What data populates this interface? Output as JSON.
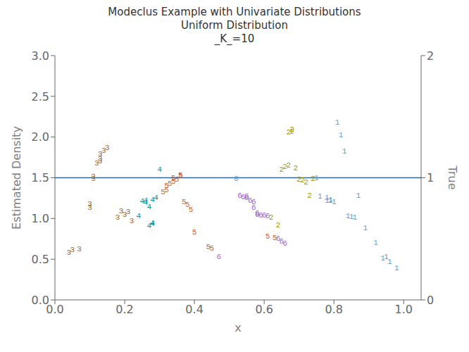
{
  "chart_data": {
    "type": "scatter",
    "title": "Modeclus Example with Univariate Distributions\nUniform Distribution\n_K_=10",
    "xlabel": "x",
    "ylabel": "Estimated Density",
    "y2label": "True",
    "xlim": [
      0.0,
      1.05
    ],
    "xticks": [
      {
        "value": 0,
        "label": "0.0"
      },
      0.2,
      0.4,
      0.6,
      0.8,
      {
        "value": 1,
        "label": "1.0"
      }
    ],
    "ylim": [
      0.0,
      3.0
    ],
    "yticks": [
      {
        "value": 0,
        "label": "0.0"
      },
      0.5,
      {
        "value": 1,
        "label": "1.0"
      },
      1.5,
      {
        "value": 2,
        "label": "2.0"
      },
      2.5,
      {
        "value": 3,
        "label": "3.0"
      }
    ],
    "y2lim": [
      0,
      2
    ],
    "y2ticks": [
      0,
      1,
      2
    ],
    "grid": false,
    "marker": "text",
    "hline": {
      "y": 1.5,
      "color": "#336699"
    },
    "x": [
      0.04,
      0.05,
      0.07,
      0.1,
      0.1,
      0.11,
      0.11,
      0.12,
      0.13,
      0.13,
      0.13,
      0.14,
      0.15,
      0.18,
      0.19,
      0.2,
      0.21,
      0.22,
      0.24,
      0.25,
      0.26,
      0.26,
      0.27,
      0.27,
      0.28,
      0.28,
      0.28,
      0.29,
      0.3,
      0.31,
      0.32,
      0.32,
      0.33,
      0.34,
      0.34,
      0.35,
      0.36,
      0.36,
      0.37,
      0.38,
      0.39,
      0.4,
      0.44,
      0.45,
      0.47,
      0.52,
      0.53,
      0.54,
      0.55,
      0.55,
      0.56,
      0.57,
      0.57,
      0.58,
      0.58,
      0.59,
      0.6,
      0.61,
      0.61,
      0.63,
      0.64,
      0.65,
      0.66,
      0.62,
      0.64,
      0.65,
      0.66,
      0.67,
      0.67,
      0.68,
      0.68,
      0.69,
      0.7,
      0.71,
      0.72,
      0.73,
      0.74,
      0.75,
      0.76,
      0.78,
      0.78,
      0.79,
      0.79,
      0.8,
      0.81,
      0.82,
      0.83,
      0.84,
      0.85,
      0.86,
      0.87,
      0.89,
      0.92,
      0.94,
      0.95,
      0.96,
      0.98
    ],
    "values": [
      0.58,
      0.61,
      0.62,
      1.13,
      1.18,
      1.49,
      1.51,
      1.68,
      1.7,
      1.73,
      1.79,
      1.83,
      1.87,
      1.01,
      1.09,
      1.05,
      1.08,
      0.97,
      1.03,
      1.21,
      1.19,
      1.22,
      1.14,
      0.91,
      0.93,
      0.94,
      1.23,
      1.25,
      1.6,
      1.32,
      1.35,
      1.4,
      1.43,
      1.45,
      1.5,
      1.48,
      1.52,
      1.53,
      1.2,
      1.17,
      1.11,
      0.83,
      0.65,
      0.63,
      0.53,
      1.49,
      1.28,
      1.26,
      1.25,
      1.27,
      1.22,
      1.2,
      1.13,
      1.05,
      1.06,
      1.04,
      1.04,
      1.03,
      0.78,
      0.76,
      0.75,
      0.72,
      0.69,
      1.01,
      0.92,
      1.6,
      1.63,
      1.65,
      2.06,
      2.07,
      2.09,
      1.62,
      1.48,
      1.47,
      1.44,
      1.28,
      1.49,
      1.5,
      1.27,
      1.22,
      1.25,
      1.22,
      1.23,
      1.2,
      2.18,
      2.02,
      1.82,
      1.03,
      1.02,
      1.01,
      1.28,
      0.88,
      0.7,
      0.51,
      0.53,
      0.47,
      0.39
    ],
    "labels": [
      "3",
      "3",
      "3",
      "3",
      "3",
      "3",
      "3",
      "3",
      "3",
      "3",
      "3",
      "3",
      "3",
      "3",
      "3",
      "3",
      "3",
      "3",
      "4",
      "4",
      "4",
      "4",
      "4",
      "4",
      "4",
      "4",
      "4",
      "4",
      "4",
      "5",
      "5",
      "5",
      "5",
      "5",
      "5",
      "5",
      "5",
      "5",
      "5",
      "5",
      "5",
      "5",
      "5",
      "5",
      "6",
      "8",
      "6",
      "6",
      "6",
      "6",
      "6",
      "6",
      "6",
      "6",
      "6",
      "6",
      "6",
      "6",
      "5",
      "5",
      "6",
      "6",
      "6",
      "2",
      "2",
      "2",
      "2",
      "2",
      "2",
      "2",
      "2",
      "2",
      "2",
      "2",
      "2",
      "2",
      "2",
      "1",
      "1",
      "1",
      "1",
      "1",
      "1",
      "1",
      "1",
      "1",
      "1",
      "1",
      "1",
      "1",
      "1",
      "1",
      "1",
      "1",
      "1",
      "1",
      "1"
    ],
    "colors": [
      "#996633",
      "#996633",
      "#996633",
      "#996633",
      "#996633",
      "#996633",
      "#996633",
      "#996633",
      "#996633",
      "#996633",
      "#996633",
      "#996633",
      "#996633",
      "#996633",
      "#996633",
      "#996633",
      "#996633",
      "#996633",
      "#009999",
      "#009999",
      "#009999",
      "#009999",
      "#009999",
      "#009999",
      "#009999",
      "#009999",
      "#009999",
      "#009999",
      "#009999",
      "#CC6633",
      "#CC6633",
      "#CC6633",
      "#CC6633",
      "#CC6633",
      "#CC6633",
      "#CC6633",
      "#CC6633",
      "#CC6633",
      "#CC6633",
      "#CC6633",
      "#CC6633",
      "#CC6633",
      "#CC6633",
      "#CC6633",
      "#9966CC",
      "#6699CC",
      "#9966CC",
      "#9966CC",
      "#9966CC",
      "#9966CC",
      "#9966CC",
      "#9966CC",
      "#9966CC",
      "#9966CC",
      "#9966CC",
      "#9966CC",
      "#9966CC",
      "#9966CC",
      "#CC6633",
      "#CC6633",
      "#9966CC",
      "#9966CC",
      "#9966CC",
      "#999900",
      "#999900",
      "#999900",
      "#999900",
      "#999900",
      "#999900",
      "#999900",
      "#999900",
      "#999900",
      "#999900",
      "#999900",
      "#999900",
      "#999900",
      "#999900",
      "#6699CC",
      "#6699CC",
      "#6699CC",
      "#6699CC",
      "#6699CC",
      "#6699CC",
      "#6699CC",
      "#6699CC",
      "#6699CC",
      "#6699CC",
      "#6699CC",
      "#6699CC",
      "#6699CC",
      "#6699CC",
      "#6699CC",
      "#6699CC",
      "#6699CC",
      "#6699CC",
      "#6699CC",
      "#6699CC"
    ]
  }
}
